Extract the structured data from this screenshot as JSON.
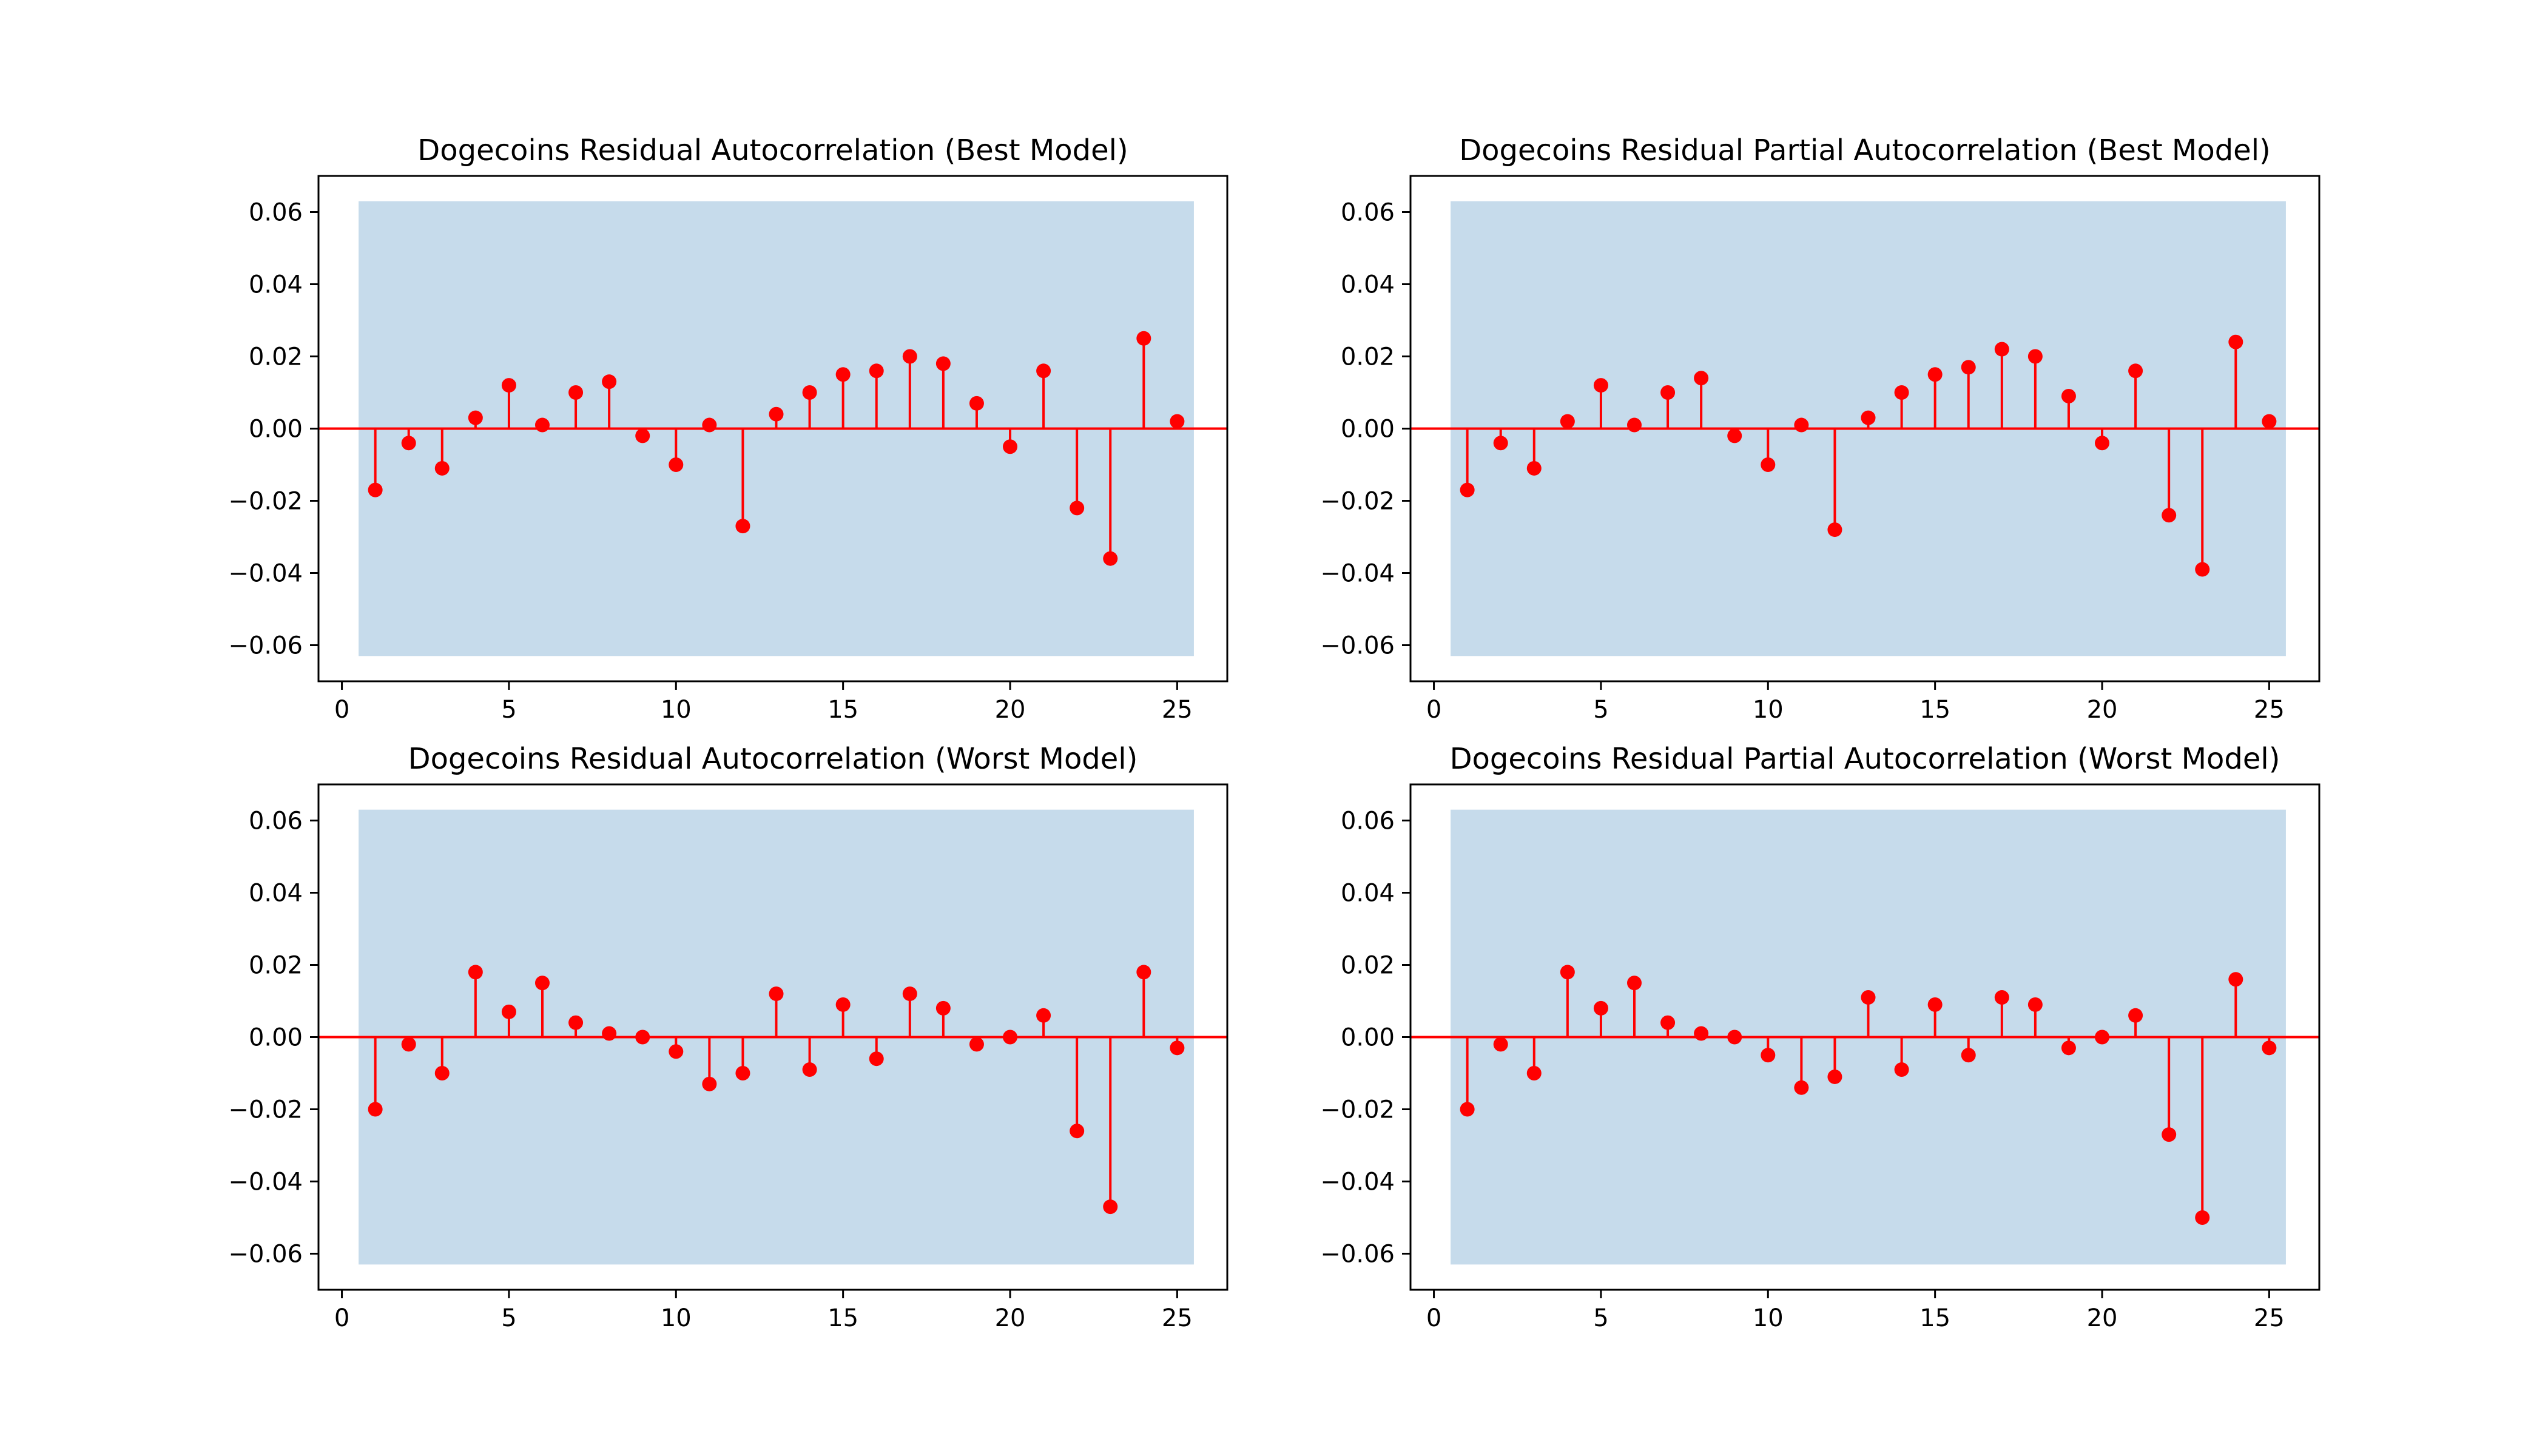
{
  "colors": {
    "stem": "#ff0000",
    "confidence_band": "#c6dbeb",
    "axis": "#000000",
    "background": "#ffffff"
  },
  "chart_data": [
    {
      "type": "stem",
      "title": "Dogecoins Residual Autocorrelation (Best Model)",
      "xlabel": "",
      "ylabel": "",
      "xlim": [
        -0.7,
        26.5
      ],
      "ylim": [
        -0.07,
        0.07
      ],
      "xticks": [
        0,
        5,
        10,
        15,
        20,
        25
      ],
      "xtick_labels": [
        "0",
        "5",
        "10",
        "15",
        "20",
        "25"
      ],
      "yticks": [
        0.06,
        0.04,
        0.02,
        0.0,
        -0.02,
        -0.04,
        -0.06
      ],
      "ytick_labels": [
        "0.06",
        "0.04",
        "0.02",
        "0.00",
        "−0.02",
        "−0.04",
        "−0.06"
      ],
      "confidence_band": {
        "x_range": [
          0.5,
          25.5
        ],
        "upper": 0.063,
        "lower": -0.063
      },
      "x": [
        1,
        2,
        3,
        4,
        5,
        6,
        7,
        8,
        9,
        10,
        11,
        12,
        13,
        14,
        15,
        16,
        17,
        18,
        19,
        20,
        21,
        22,
        23,
        24,
        25
      ],
      "values": [
        -0.017,
        -0.004,
        -0.011,
        0.003,
        0.012,
        0.001,
        0.01,
        0.013,
        -0.002,
        -0.01,
        0.001,
        -0.027,
        0.004,
        0.01,
        0.015,
        0.016,
        0.02,
        0.018,
        0.007,
        -0.005,
        0.016,
        -0.022,
        -0.036,
        0.025,
        0.002
      ],
      "grid": false
    },
    {
      "type": "stem",
      "title": "Dogecoins Residual Partial Autocorrelation (Best Model)",
      "xlabel": "",
      "ylabel": "",
      "xlim": [
        -0.7,
        26.5
      ],
      "ylim": [
        -0.07,
        0.07
      ],
      "xticks": [
        0,
        5,
        10,
        15,
        20,
        25
      ],
      "xtick_labels": [
        "0",
        "5",
        "10",
        "15",
        "20",
        "25"
      ],
      "yticks": [
        0.06,
        0.04,
        0.02,
        0.0,
        -0.02,
        -0.04,
        -0.06
      ],
      "ytick_labels": [
        "0.06",
        "0.04",
        "0.02",
        "0.00",
        "−0.02",
        "−0.04",
        "−0.06"
      ],
      "confidence_band": {
        "x_range": [
          0.5,
          25.5
        ],
        "upper": 0.063,
        "lower": -0.063
      },
      "x": [
        1,
        2,
        3,
        4,
        5,
        6,
        7,
        8,
        9,
        10,
        11,
        12,
        13,
        14,
        15,
        16,
        17,
        18,
        19,
        20,
        21,
        22,
        23,
        24,
        25
      ],
      "values": [
        -0.017,
        -0.004,
        -0.011,
        0.002,
        0.012,
        0.001,
        0.01,
        0.014,
        -0.002,
        -0.01,
        0.001,
        -0.028,
        0.003,
        0.01,
        0.015,
        0.017,
        0.022,
        0.02,
        0.009,
        -0.004,
        0.016,
        -0.024,
        -0.039,
        0.024,
        0.002
      ],
      "grid": false
    },
    {
      "type": "stem",
      "title": "Dogecoins Residual Autocorrelation (Worst Model)",
      "xlabel": "",
      "ylabel": "",
      "xlim": [
        -0.7,
        26.5
      ],
      "ylim": [
        -0.07,
        0.07
      ],
      "xticks": [
        0,
        5,
        10,
        15,
        20,
        25
      ],
      "xtick_labels": [
        "0",
        "5",
        "10",
        "15",
        "20",
        "25"
      ],
      "yticks": [
        0.06,
        0.04,
        0.02,
        0.0,
        -0.02,
        -0.04,
        -0.06
      ],
      "ytick_labels": [
        "0.06",
        "0.04",
        "0.02",
        "0.00",
        "−0.02",
        "−0.04",
        "−0.06"
      ],
      "confidence_band": {
        "x_range": [
          0.5,
          25.5
        ],
        "upper": 0.063,
        "lower": -0.063
      },
      "x": [
        1,
        2,
        3,
        4,
        5,
        6,
        7,
        8,
        9,
        10,
        11,
        12,
        13,
        14,
        15,
        16,
        17,
        18,
        19,
        20,
        21,
        22,
        23,
        24,
        25
      ],
      "values": [
        -0.02,
        -0.002,
        -0.01,
        0.018,
        0.007,
        0.015,
        0.004,
        0.001,
        0.0,
        -0.004,
        -0.013,
        -0.01,
        0.012,
        -0.009,
        0.009,
        -0.006,
        0.012,
        0.008,
        -0.002,
        0.0,
        0.006,
        -0.026,
        -0.047,
        0.018,
        -0.003
      ],
      "grid": false
    },
    {
      "type": "stem",
      "title": "Dogecoins Residual Partial Autocorrelation (Worst Model)",
      "xlabel": "",
      "ylabel": "",
      "xlim": [
        -0.7,
        26.5
      ],
      "ylim": [
        -0.07,
        0.07
      ],
      "xticks": [
        0,
        5,
        10,
        15,
        20,
        25
      ],
      "xtick_labels": [
        "0",
        "5",
        "10",
        "15",
        "20",
        "25"
      ],
      "yticks": [
        0.06,
        0.04,
        0.02,
        0.0,
        -0.02,
        -0.04,
        -0.06
      ],
      "ytick_labels": [
        "0.06",
        "0.04",
        "0.02",
        "0.00",
        "−0.02",
        "−0.04",
        "−0.06"
      ],
      "confidence_band": {
        "x_range": [
          0.5,
          25.5
        ],
        "upper": 0.063,
        "lower": -0.063
      },
      "x": [
        1,
        2,
        3,
        4,
        5,
        6,
        7,
        8,
        9,
        10,
        11,
        12,
        13,
        14,
        15,
        16,
        17,
        18,
        19,
        20,
        21,
        22,
        23,
        24,
        25
      ],
      "values": [
        -0.02,
        -0.002,
        -0.01,
        0.018,
        0.008,
        0.015,
        0.004,
        0.001,
        0.0,
        -0.005,
        -0.014,
        -0.011,
        0.011,
        -0.009,
        0.009,
        -0.005,
        0.011,
        0.009,
        -0.003,
        0.0,
        0.006,
        -0.027,
        -0.05,
        0.016,
        -0.003
      ],
      "grid": false
    }
  ]
}
